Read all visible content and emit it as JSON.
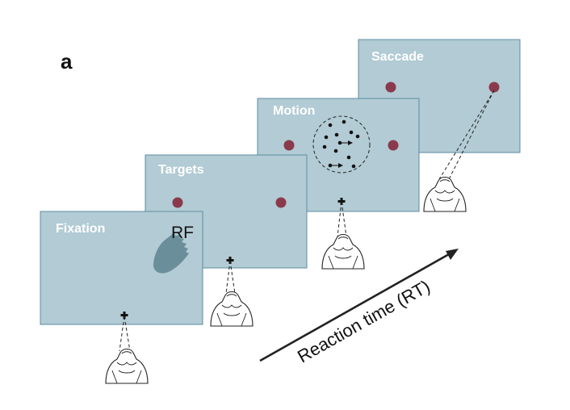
{
  "figure": {
    "panel_letter": "a",
    "rf_label": "RF",
    "reaction_time_label": "Reaction time (RT)"
  },
  "panels": [
    {
      "id": "fixation",
      "title": "Fixation"
    },
    {
      "id": "targets",
      "title": "Targets"
    },
    {
      "id": "motion",
      "title": "Motion"
    },
    {
      "id": "saccade",
      "title": "Saccade"
    }
  ],
  "colors": {
    "panel_fill": "#b2cbd4",
    "panel_border": "#5f8da0",
    "target": "#8a3a4c",
    "receptive_field": "#6b8e9b",
    "title_text": "#ffffff"
  }
}
